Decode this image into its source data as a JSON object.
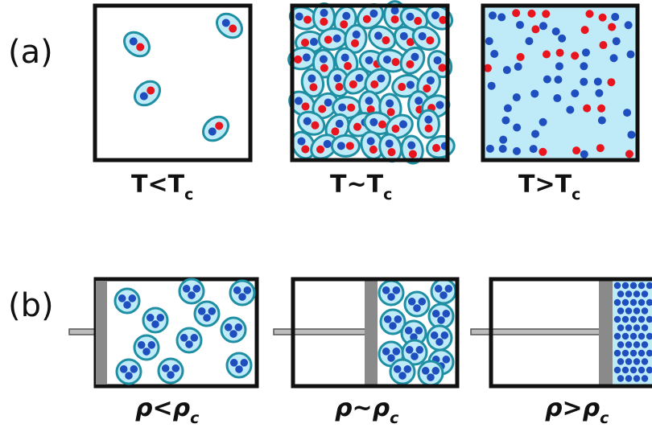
{
  "panels": {
    "a": {
      "label": "(a)",
      "captions": [
        {
          "base": "T<T",
          "sub": "c"
        },
        {
          "base": "T~T",
          "sub": "c"
        },
        {
          "base": "T>T",
          "sub": "c"
        }
      ]
    },
    "b": {
      "label": "(b)",
      "captions": [
        {
          "base": "ρ<ρ",
          "sub": "c"
        },
        {
          "base": "ρ~ρ",
          "sub": "c"
        },
        {
          "base": "ρ>ρ",
          "sub": "c"
        }
      ]
    }
  },
  "colors": {
    "blue_particle": "#1f4fbf",
    "red_particle": "#e8141e",
    "pair_ring": "#1f8fa3",
    "cluster_fill": "#bfeaf7",
    "plasma_fill": "#bfeaf7",
    "piston": "#8a8a8a"
  }
}
